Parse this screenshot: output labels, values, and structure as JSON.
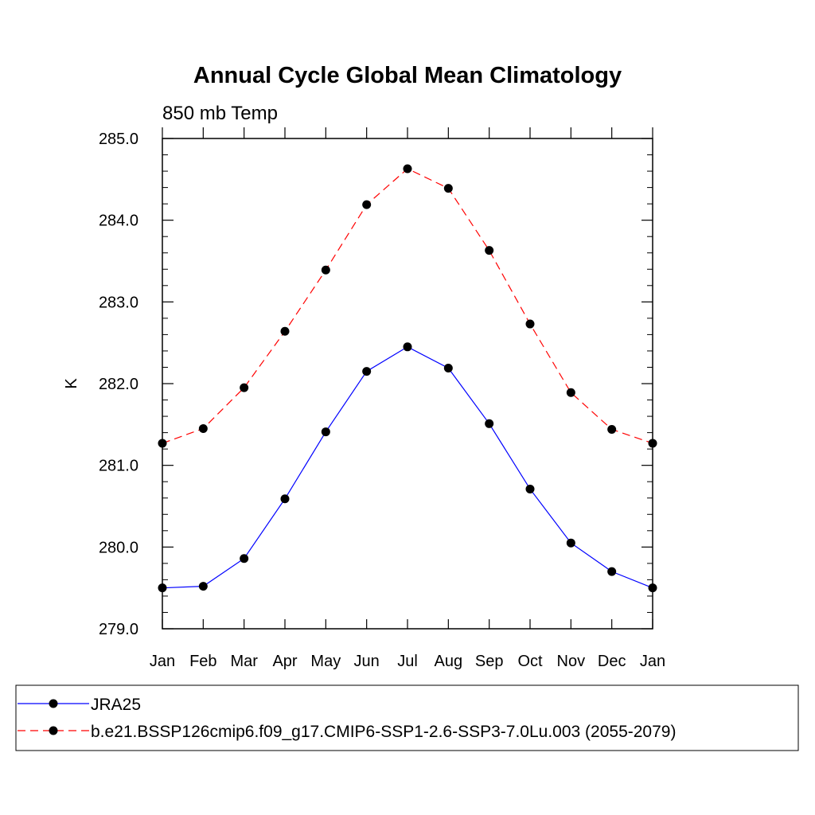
{
  "chart_data": {
    "type": "line",
    "title": "Annual Cycle Global Mean Climatology",
    "subtitle": "850 mb Temp",
    "xlabel": "",
    "ylabel": "K",
    "categories": [
      "Jan",
      "Feb",
      "Mar",
      "Apr",
      "May",
      "Jun",
      "Jul",
      "Aug",
      "Sep",
      "Oct",
      "Nov",
      "Dec",
      "Jan"
    ],
    "ylim": [
      279.0,
      285.0
    ],
    "yticks": [
      "279.0",
      "280.0",
      "281.0",
      "282.0",
      "283.0",
      "284.0",
      "285.0"
    ],
    "grid": false,
    "legend_position": "bottom",
    "series": [
      {
        "name": "JRA25",
        "color": "#0000ff",
        "dash": "solid",
        "marker": "filled-circle",
        "values": [
          279.5,
          279.52,
          279.86,
          280.59,
          281.41,
          282.15,
          282.45,
          282.19,
          281.51,
          280.71,
          280.05,
          279.7,
          279.5
        ]
      },
      {
        "name": "b.e21.BSSP126cmip6.f09_g17.CMIP6-SSP1-2.6-SSP3-7.0Lu.003 (2055-2079)",
        "color": "#ff0000",
        "dash": "dashed",
        "marker": "filled-circle",
        "values": [
          281.27,
          281.45,
          281.95,
          282.64,
          283.39,
          284.19,
          284.63,
          284.39,
          283.63,
          282.73,
          281.89,
          281.44,
          281.27
        ]
      }
    ]
  }
}
